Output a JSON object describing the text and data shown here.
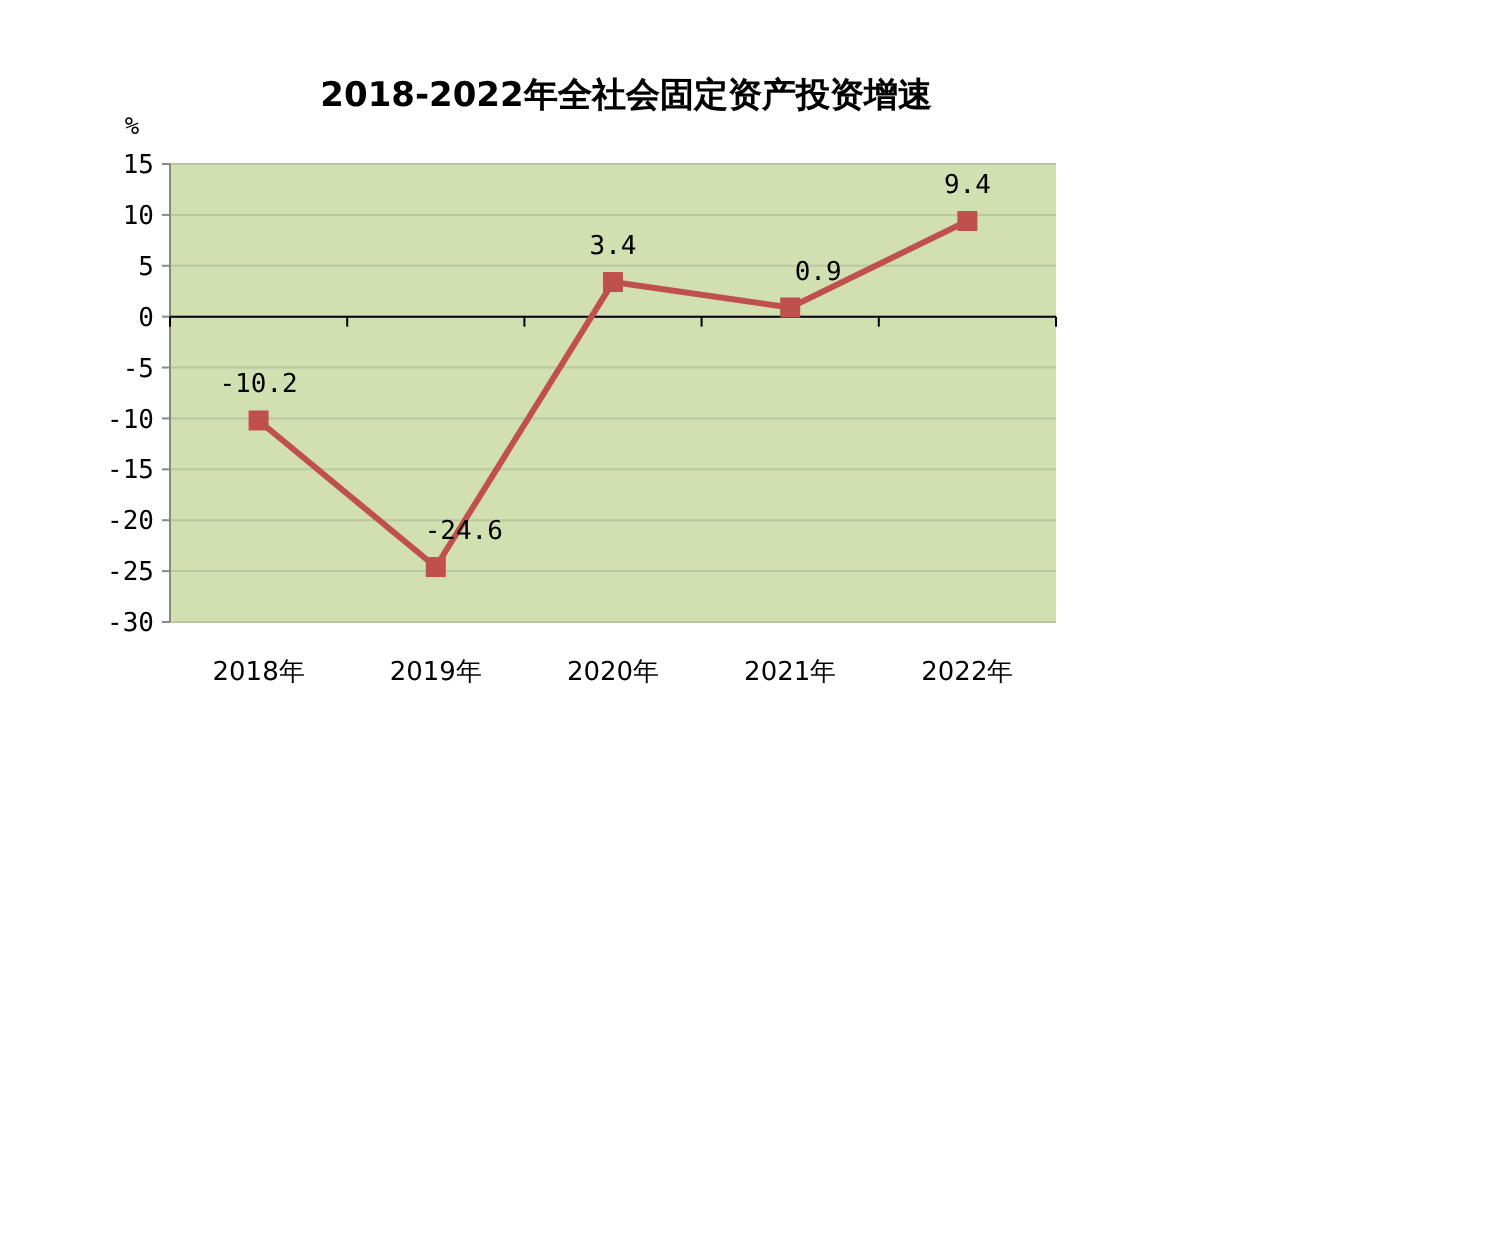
{
  "chart_data": {
    "type": "line",
    "title": "2018-2022年全社会固定资产投资增速",
    "ylabel": "%",
    "categories": [
      "2018年",
      "2019年",
      "2020年",
      "2021年",
      "2022年"
    ],
    "series": [
      {
        "color": "#c0504d",
        "values": [
          -10.2,
          -24.6,
          3.4,
          0.9,
          9.4
        ]
      }
    ],
    "ylim": [
      -30,
      15
    ],
    "yticks": [
      -30,
      -25,
      -20,
      -15,
      -10,
      -5,
      0,
      5,
      10,
      15
    ],
    "grid": "y",
    "marker": "square",
    "data_labels": true
  }
}
